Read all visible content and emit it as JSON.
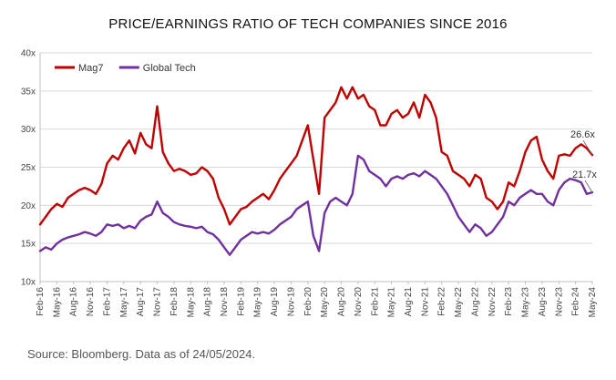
{
  "title": "PRICE/EARNINGS RATIO OF TECH COMPANIES SINCE 2016",
  "source": "Source: Bloomberg. Data as of 24/05/2024.",
  "colors": {
    "mag7": "#c00000",
    "global": "#7030a0",
    "grid": "#d9d9d9",
    "axis": "#bfbfbf"
  },
  "chart_data": {
    "type": "line",
    "title": "PRICE/EARNINGS RATIO OF TECH COMPANIES SINCE 2016",
    "xlabel": "",
    "ylabel": "",
    "ylim": [
      10,
      40
    ],
    "y_ticks": [
      "10x",
      "15x",
      "20x",
      "25x",
      "30x",
      "35x",
      "40x"
    ],
    "x_ticks": [
      "Feb-16",
      "May-16",
      "Aug-16",
      "Nov-16",
      "Feb-17",
      "May-17",
      "Aug-17",
      "Nov-17",
      "Feb-18",
      "May-18",
      "Aug-18",
      "Nov-18",
      "Feb-19",
      "May-19",
      "Aug-19",
      "Nov-19",
      "Feb-20",
      "May-20",
      "Aug-20",
      "Nov-20",
      "Feb-21",
      "May-21",
      "Aug-21",
      "Nov-21",
      "Feb-22",
      "May-22",
      "Aug-22",
      "Nov-22",
      "Feb-23",
      "May-23",
      "Aug-23",
      "Nov-23",
      "Feb-24",
      "May-24"
    ],
    "grid": "horizontal",
    "legend": "top-left",
    "end_labels": {
      "mag7": "26.6x",
      "global": "21.7x"
    },
    "x": [
      "2016-02",
      "2016-03",
      "2016-04",
      "2016-05",
      "2016-06",
      "2016-07",
      "2016-08",
      "2016-09",
      "2016-10",
      "2016-11",
      "2016-12",
      "2017-01",
      "2017-02",
      "2017-03",
      "2017-04",
      "2017-05",
      "2017-06",
      "2017-07",
      "2017-08",
      "2017-09",
      "2017-10",
      "2017-11",
      "2017-12",
      "2018-01",
      "2018-02",
      "2018-03",
      "2018-04",
      "2018-05",
      "2018-06",
      "2018-07",
      "2018-08",
      "2018-09",
      "2018-10",
      "2018-11",
      "2018-12",
      "2019-01",
      "2019-02",
      "2019-03",
      "2019-04",
      "2019-05",
      "2019-06",
      "2019-07",
      "2019-08",
      "2019-09",
      "2019-10",
      "2019-11",
      "2019-12",
      "2020-01",
      "2020-02",
      "2020-03",
      "2020-04",
      "2020-05",
      "2020-06",
      "2020-07",
      "2020-08",
      "2020-09",
      "2020-10",
      "2020-11",
      "2020-12",
      "2021-01",
      "2021-02",
      "2021-03",
      "2021-04",
      "2021-05",
      "2021-06",
      "2021-07",
      "2021-08",
      "2021-09",
      "2021-10",
      "2021-11",
      "2021-12",
      "2022-01",
      "2022-02",
      "2022-03",
      "2022-04",
      "2022-05",
      "2022-06",
      "2022-07",
      "2022-08",
      "2022-09",
      "2022-10",
      "2022-11",
      "2022-12",
      "2023-01",
      "2023-02",
      "2023-03",
      "2023-04",
      "2023-05",
      "2023-06",
      "2023-07",
      "2023-08",
      "2023-09",
      "2023-10",
      "2023-11",
      "2023-12",
      "2024-01",
      "2024-02",
      "2024-03",
      "2024-04",
      "2024-05"
    ],
    "series": [
      {
        "name": "Mag7",
        "color": "#c00000",
        "values": [
          17.5,
          18.5,
          19.5,
          20.2,
          19.8,
          21.0,
          21.5,
          22.0,
          22.3,
          22.0,
          21.5,
          22.8,
          25.5,
          26.5,
          26.0,
          27.5,
          28.5,
          26.8,
          29.5,
          28.0,
          27.5,
          33.0,
          27.0,
          25.5,
          24.5,
          24.8,
          24.5,
          24.0,
          24.2,
          25.0,
          24.5,
          23.5,
          21.0,
          19.5,
          17.5,
          18.5,
          19.5,
          19.8,
          20.5,
          21.0,
          21.5,
          20.8,
          22.0,
          23.5,
          24.5,
          25.5,
          26.5,
          28.5,
          30.5,
          26.0,
          21.5,
          31.5,
          32.5,
          33.5,
          35.5,
          34.0,
          35.5,
          34.0,
          34.5,
          33.0,
          32.5,
          30.5,
          30.5,
          32.0,
          32.5,
          31.5,
          32.0,
          33.5,
          31.5,
          34.5,
          33.5,
          31.5,
          27.0,
          26.5,
          24.5,
          24.0,
          23.5,
          22.5,
          24.0,
          23.5,
          21.0,
          20.5,
          19.5,
          20.5,
          23.0,
          22.5,
          24.5,
          27.0,
          28.5,
          29.0,
          26.0,
          24.5,
          23.5,
          26.5,
          26.7,
          26.5,
          27.5,
          28.0,
          27.5,
          26.6
        ]
      },
      {
        "name": "Global Tech",
        "color": "#7030a0",
        "values": [
          14.0,
          14.5,
          14.2,
          15.0,
          15.5,
          15.8,
          16.0,
          16.2,
          16.5,
          16.3,
          16.0,
          16.5,
          17.5,
          17.3,
          17.5,
          17.0,
          17.3,
          17.0,
          18.0,
          18.5,
          18.8,
          20.5,
          19.0,
          18.5,
          17.8,
          17.5,
          17.3,
          17.2,
          17.0,
          17.2,
          16.5,
          16.2,
          15.5,
          14.5,
          13.5,
          14.5,
          15.5,
          16.0,
          16.5,
          16.3,
          16.5,
          16.3,
          16.8,
          17.5,
          18.0,
          18.5,
          19.5,
          20.0,
          20.5,
          16.0,
          14.0,
          19.0,
          20.5,
          21.0,
          20.5,
          20.0,
          21.5,
          26.5,
          26.0,
          24.5,
          24.0,
          23.5,
          22.5,
          23.5,
          23.8,
          23.5,
          24.0,
          24.2,
          23.8,
          24.5,
          24.0,
          23.5,
          22.5,
          21.5,
          20.0,
          18.5,
          17.5,
          16.5,
          17.5,
          17.0,
          16.0,
          16.5,
          17.5,
          18.5,
          20.5,
          20.0,
          21.0,
          21.5,
          22.0,
          21.5,
          21.5,
          20.5,
          20.0,
          22.0,
          23.0,
          23.5,
          23.3,
          23.0,
          21.5,
          21.7
        ]
      }
    ]
  }
}
